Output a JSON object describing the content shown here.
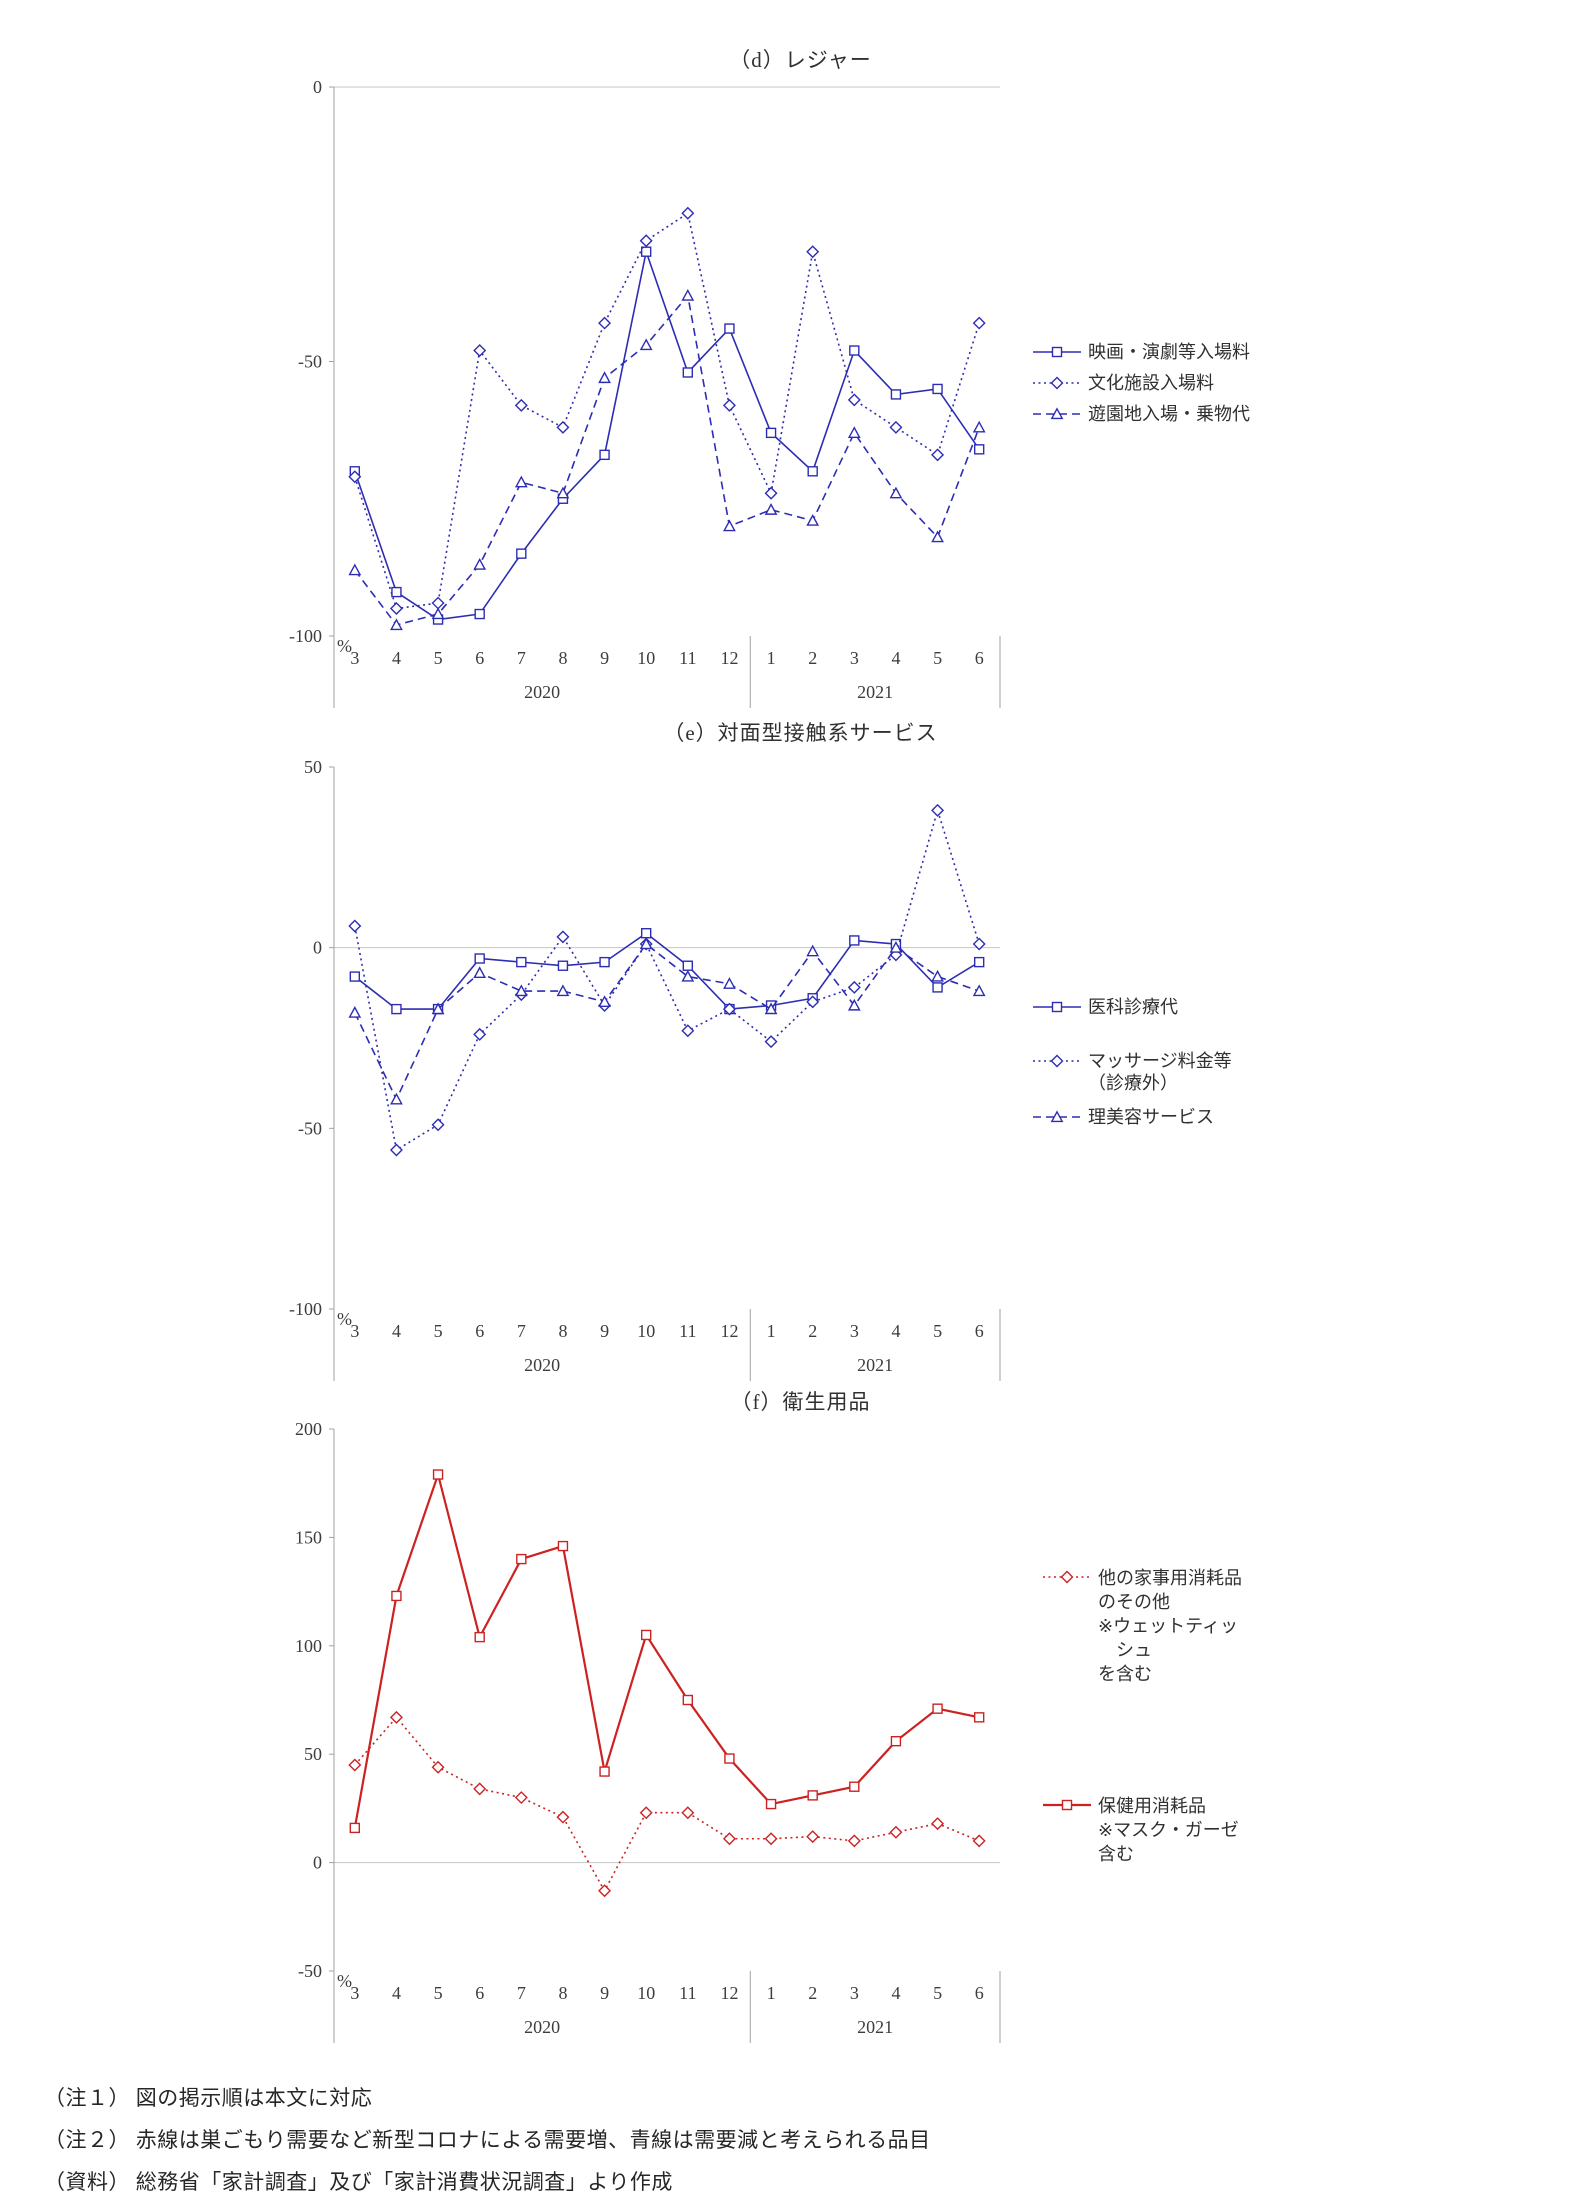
{
  "notes": [
    "（注１） 図の掲示順は本文に対応",
    "（注２） 赤線は巣ごもり需要など新型コロナによる需要増、青線は需要減と考えられる品目",
    "（資料） 総務省「家計調査」及び「家計消費状況調査」より作成"
  ],
  "chart_data": [
    {
      "type": "line",
      "title": "（d）レジャー",
      "unit": "%",
      "ylim": [
        -100,
        0
      ],
      "y_ticks": [
        0,
        -50,
        -100
      ],
      "grid": "zero-line only",
      "legend_position": "right",
      "x_labels": [
        "3",
        "4",
        "5",
        "6",
        "7",
        "8",
        "9",
        "10",
        "11",
        "12",
        "1",
        "2",
        "3",
        "4",
        "5",
        "6"
      ],
      "x_groups": [
        {
          "label": "2020",
          "count": 10
        },
        {
          "label": "2021",
          "count": 6
        }
      ],
      "series": [
        {
          "name": "映画・演劇等入場料",
          "legend": "映画・演劇等入場料",
          "color": "#2d2db4",
          "line": "solid",
          "marker": "square",
          "values": [
            -70,
            -92,
            -97,
            -96,
            -85,
            -75,
            -67,
            -30,
            -52,
            -44,
            -63,
            -70,
            -48,
            -56,
            -55,
            -66
          ]
        },
        {
          "name": "文化施設入場料",
          "legend": "文化施設入場料",
          "color": "#2d2db4",
          "line": "dotted",
          "marker": "diamond",
          "values": [
            -71,
            -95,
            -94,
            -48,
            -58,
            -62,
            -43,
            -28,
            -23,
            -58,
            -74,
            -30,
            -57,
            -62,
            -67,
            -43
          ]
        },
        {
          "name": "遊園地入場・乗物代",
          "legend": "遊園地入場・乗物代",
          "color": "#2d2db4",
          "line": "dashed",
          "marker": "triangle",
          "values": [
            -88,
            -98,
            -96,
            -87,
            -72,
            -74,
            -53,
            -47,
            -38,
            -80,
            -77,
            -79,
            -63,
            -74,
            -82,
            -62
          ]
        }
      ]
    },
    {
      "type": "line",
      "title": "（e）対面型接触系サービス",
      "unit": "%",
      "ylim": [
        -100,
        50
      ],
      "y_ticks": [
        50,
        0,
        -50,
        -100
      ],
      "grid": "zero-line only",
      "legend_position": "right",
      "x_labels": [
        "3",
        "4",
        "5",
        "6",
        "7",
        "8",
        "9",
        "10",
        "11",
        "12",
        "1",
        "2",
        "3",
        "4",
        "5",
        "6"
      ],
      "x_groups": [
        {
          "label": "2020",
          "count": 10
        },
        {
          "label": "2021",
          "count": 6
        }
      ],
      "series": [
        {
          "name": "医科診療代",
          "legend": "医科診療代",
          "color": "#2d2db4",
          "line": "solid",
          "marker": "square",
          "values": [
            -8,
            -17,
            -17,
            -3,
            -4,
            -5,
            -4,
            4,
            -5,
            -17,
            -16,
            -14,
            2,
            1,
            -11,
            -4
          ]
        },
        {
          "name": "マッサージ料金等（診療外）",
          "legend": "マッサージ料金等\n（診療外）",
          "color": "#2d2db4",
          "line": "dotted",
          "marker": "diamond",
          "values": [
            6,
            -56,
            -49,
            -24,
            -13,
            3,
            -16,
            1,
            -23,
            -17,
            -26,
            -15,
            -11,
            -2,
            38,
            1
          ]
        },
        {
          "name": "理美容サービス",
          "legend": "理美容サービス",
          "color": "#2d2db4",
          "line": "dashed",
          "marker": "triangle",
          "values": [
            -18,
            -42,
            -17,
            -7,
            -12,
            -12,
            -15,
            1,
            -8,
            -10,
            -17,
            -1,
            -16,
            0,
            -8,
            -12
          ]
        }
      ]
    },
    {
      "type": "line",
      "title": "（f）衛生用品",
      "unit": "%",
      "ylim": [
        -50,
        200
      ],
      "y_ticks": [
        200,
        150,
        100,
        50,
        0,
        -50
      ],
      "grid": "zero-line only",
      "legend_position": "right",
      "x_labels": [
        "3",
        "4",
        "5",
        "6",
        "7",
        "8",
        "9",
        "10",
        "11",
        "12",
        "1",
        "2",
        "3",
        "4",
        "5",
        "6"
      ],
      "x_groups": [
        {
          "label": "2020",
          "count": 10
        },
        {
          "label": "2021",
          "count": 6
        }
      ],
      "series": [
        {
          "name": "他の家事用消耗品のその他（※ウェットティッシュを含む）",
          "legend": "他の家事用消耗品\nのその他\n※ウェットティッ\n　シュ\nを含む",
          "color": "#cc2222",
          "line": "dotted",
          "marker": "diamond",
          "values": [
            45,
            67,
            44,
            34,
            30,
            21,
            -13,
            23,
            23,
            11,
            11,
            12,
            10,
            14,
            18,
            10
          ]
        },
        {
          "name": "保健用消耗品（※マスク・ガーゼ含む）",
          "legend": "保健用消耗品\n※マスク・ガーゼ\n含む",
          "color": "#cc2222",
          "line": "solid",
          "marker": "square",
          "values": [
            16,
            123,
            179,
            104,
            140,
            146,
            42,
            105,
            75,
            48,
            27,
            31,
            35,
            56,
            71,
            67
          ]
        }
      ]
    }
  ]
}
